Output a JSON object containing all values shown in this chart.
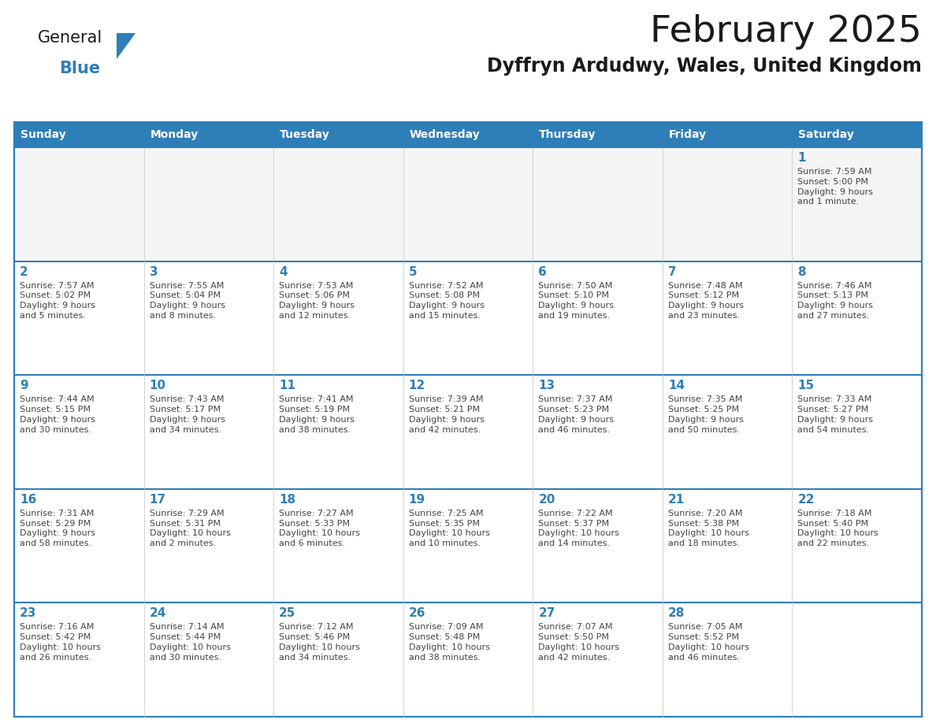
{
  "title": "February 2025",
  "subtitle": "Dyffryn Ardudwy, Wales, United Kingdom",
  "days_of_week": [
    "Sunday",
    "Monday",
    "Tuesday",
    "Wednesday",
    "Thursday",
    "Friday",
    "Saturday"
  ],
  "header_bg": "#2E7EB8",
  "header_text": "#FFFFFF",
  "cell_bg_light": "#F2F2F2",
  "cell_bg_white": "#FFFFFF",
  "border_color": "#2E7EB8",
  "inner_line_color": "#9DB8D2",
  "day_num_color": "#2E7EB8",
  "info_color": "#444444",
  "title_color": "#1a1a1a",
  "subtitle_color": "#1a1a1a",
  "logo_general_color": "#1a1a1a",
  "logo_blue_color": "#2E7EB8",
  "weeks": [
    [
      {
        "day": null,
        "info": ""
      },
      {
        "day": null,
        "info": ""
      },
      {
        "day": null,
        "info": ""
      },
      {
        "day": null,
        "info": ""
      },
      {
        "day": null,
        "info": ""
      },
      {
        "day": null,
        "info": ""
      },
      {
        "day": 1,
        "info": "Sunrise: 7:59 AM\nSunset: 5:00 PM\nDaylight: 9 hours\nand 1 minute."
      }
    ],
    [
      {
        "day": 2,
        "info": "Sunrise: 7:57 AM\nSunset: 5:02 PM\nDaylight: 9 hours\nand 5 minutes."
      },
      {
        "day": 3,
        "info": "Sunrise: 7:55 AM\nSunset: 5:04 PM\nDaylight: 9 hours\nand 8 minutes."
      },
      {
        "day": 4,
        "info": "Sunrise: 7:53 AM\nSunset: 5:06 PM\nDaylight: 9 hours\nand 12 minutes."
      },
      {
        "day": 5,
        "info": "Sunrise: 7:52 AM\nSunset: 5:08 PM\nDaylight: 9 hours\nand 15 minutes."
      },
      {
        "day": 6,
        "info": "Sunrise: 7:50 AM\nSunset: 5:10 PM\nDaylight: 9 hours\nand 19 minutes."
      },
      {
        "day": 7,
        "info": "Sunrise: 7:48 AM\nSunset: 5:12 PM\nDaylight: 9 hours\nand 23 minutes."
      },
      {
        "day": 8,
        "info": "Sunrise: 7:46 AM\nSunset: 5:13 PM\nDaylight: 9 hours\nand 27 minutes."
      }
    ],
    [
      {
        "day": 9,
        "info": "Sunrise: 7:44 AM\nSunset: 5:15 PM\nDaylight: 9 hours\nand 30 minutes."
      },
      {
        "day": 10,
        "info": "Sunrise: 7:43 AM\nSunset: 5:17 PM\nDaylight: 9 hours\nand 34 minutes."
      },
      {
        "day": 11,
        "info": "Sunrise: 7:41 AM\nSunset: 5:19 PM\nDaylight: 9 hours\nand 38 minutes."
      },
      {
        "day": 12,
        "info": "Sunrise: 7:39 AM\nSunset: 5:21 PM\nDaylight: 9 hours\nand 42 minutes."
      },
      {
        "day": 13,
        "info": "Sunrise: 7:37 AM\nSunset: 5:23 PM\nDaylight: 9 hours\nand 46 minutes."
      },
      {
        "day": 14,
        "info": "Sunrise: 7:35 AM\nSunset: 5:25 PM\nDaylight: 9 hours\nand 50 minutes."
      },
      {
        "day": 15,
        "info": "Sunrise: 7:33 AM\nSunset: 5:27 PM\nDaylight: 9 hours\nand 54 minutes."
      }
    ],
    [
      {
        "day": 16,
        "info": "Sunrise: 7:31 AM\nSunset: 5:29 PM\nDaylight: 9 hours\nand 58 minutes."
      },
      {
        "day": 17,
        "info": "Sunrise: 7:29 AM\nSunset: 5:31 PM\nDaylight: 10 hours\nand 2 minutes."
      },
      {
        "day": 18,
        "info": "Sunrise: 7:27 AM\nSunset: 5:33 PM\nDaylight: 10 hours\nand 6 minutes."
      },
      {
        "day": 19,
        "info": "Sunrise: 7:25 AM\nSunset: 5:35 PM\nDaylight: 10 hours\nand 10 minutes."
      },
      {
        "day": 20,
        "info": "Sunrise: 7:22 AM\nSunset: 5:37 PM\nDaylight: 10 hours\nand 14 minutes."
      },
      {
        "day": 21,
        "info": "Sunrise: 7:20 AM\nSunset: 5:38 PM\nDaylight: 10 hours\nand 18 minutes."
      },
      {
        "day": 22,
        "info": "Sunrise: 7:18 AM\nSunset: 5:40 PM\nDaylight: 10 hours\nand 22 minutes."
      }
    ],
    [
      {
        "day": 23,
        "info": "Sunrise: 7:16 AM\nSunset: 5:42 PM\nDaylight: 10 hours\nand 26 minutes."
      },
      {
        "day": 24,
        "info": "Sunrise: 7:14 AM\nSunset: 5:44 PM\nDaylight: 10 hours\nand 30 minutes."
      },
      {
        "day": 25,
        "info": "Sunrise: 7:12 AM\nSunset: 5:46 PM\nDaylight: 10 hours\nand 34 minutes."
      },
      {
        "day": 26,
        "info": "Sunrise: 7:09 AM\nSunset: 5:48 PM\nDaylight: 10 hours\nand 38 minutes."
      },
      {
        "day": 27,
        "info": "Sunrise: 7:07 AM\nSunset: 5:50 PM\nDaylight: 10 hours\nand 42 minutes."
      },
      {
        "day": 28,
        "info": "Sunrise: 7:05 AM\nSunset: 5:52 PM\nDaylight: 10 hours\nand 46 minutes."
      },
      {
        "day": null,
        "info": ""
      }
    ]
  ]
}
